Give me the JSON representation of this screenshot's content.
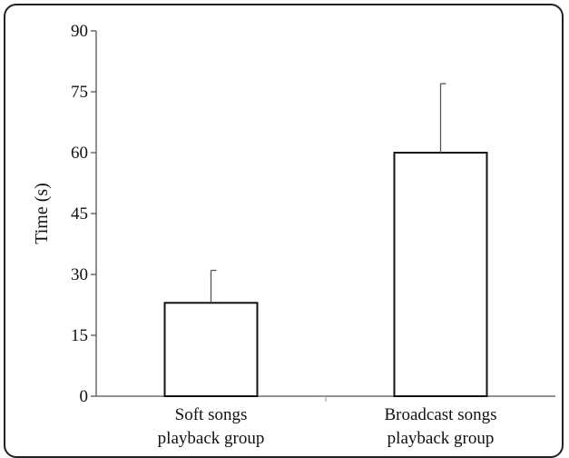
{
  "chart_data": {
    "type": "bar",
    "title": "",
    "xlabel": "",
    "ylabel": "Time (s)",
    "ylim": [
      0,
      90
    ],
    "yticks": [
      0,
      15,
      30,
      45,
      60,
      75,
      90
    ],
    "categories": [
      [
        "Soft songs",
        "playback group"
      ],
      [
        "Broadcast songs",
        "playback group"
      ]
    ],
    "values": [
      23,
      60
    ],
    "error_plus": [
      8,
      17
    ],
    "grid": false,
    "legend": "none",
    "colors": {
      "bar_fill": "#ffffff",
      "bar_stroke": "#111111",
      "axis": "#555555"
    }
  }
}
